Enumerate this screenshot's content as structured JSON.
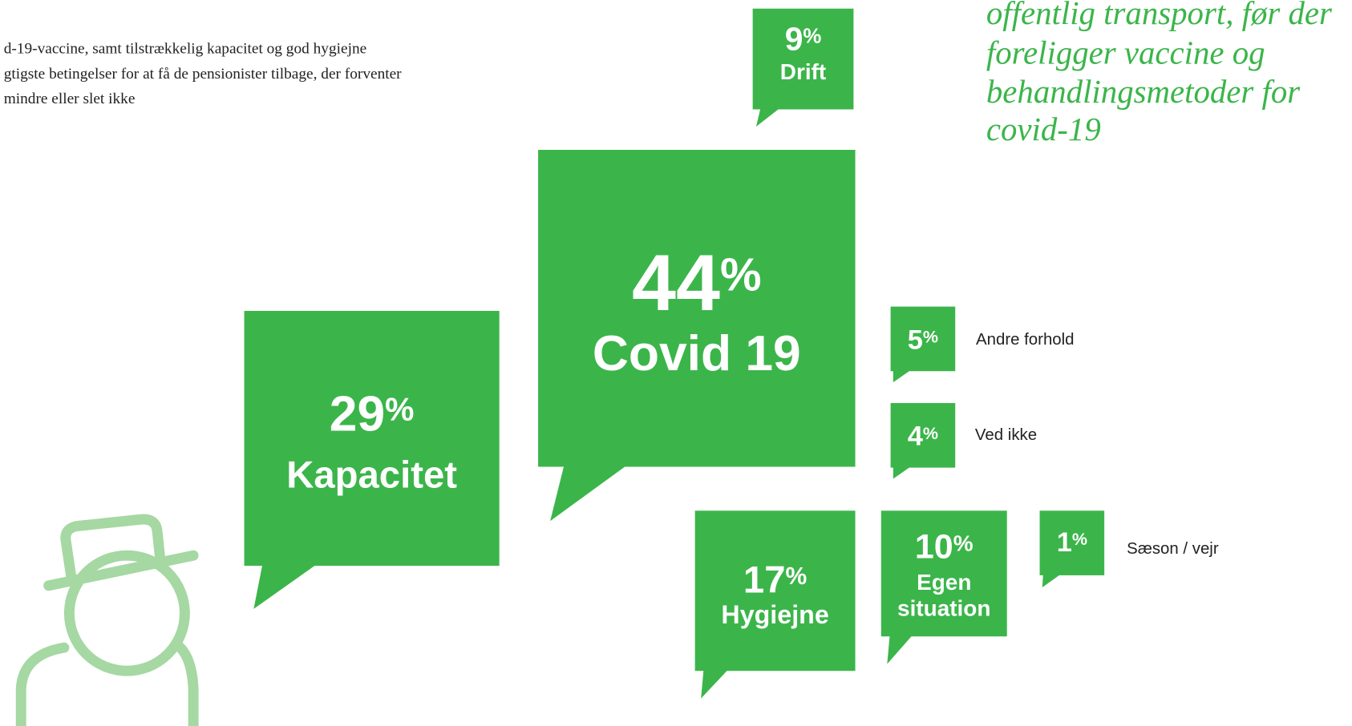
{
  "intro": [
    "d-19-vaccine, samt tilstrækkelig kapacitet og god hygiejne",
    "gtigste betingelser for at få de pensionister tilbage, der forventer",
    "mindre eller slet ikke"
  ],
  "headline": [
    "offentlig transport, før der",
    "foreligger vaccine og",
    "behandlingsmetoder for",
    "covid-19"
  ],
  "bubbles": [
    {
      "value": 9,
      "unit": "%",
      "label": [
        "Drift"
      ]
    },
    {
      "value": 44,
      "unit": "%",
      "label": [
        "Covid 19"
      ]
    },
    {
      "value": 29,
      "unit": "%",
      "label": [
        "Kapacitet"
      ]
    },
    {
      "value": 5,
      "unit": "%",
      "side_label": "Andre forhold"
    },
    {
      "value": 4,
      "unit": "%",
      "side_label": "Ved ikke"
    },
    {
      "value": 17,
      "unit": "%",
      "label": [
        "Hygiejne"
      ]
    },
    {
      "value": 10,
      "unit": "%",
      "label": [
        "Egen",
        "situation"
      ]
    },
    {
      "value": 1,
      "unit": "%",
      "side_label": "Sæson / vejr"
    }
  ]
}
